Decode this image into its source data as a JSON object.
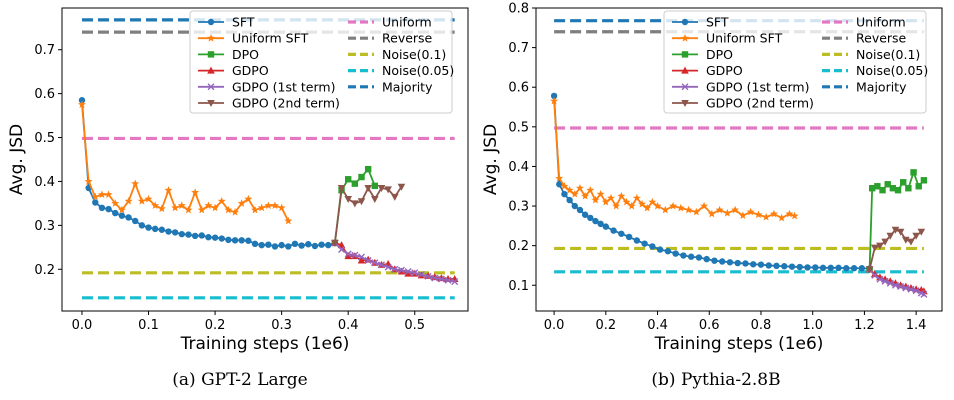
{
  "chart_data": [
    {
      "type": "line",
      "caption": "(a) GPT-2 Large",
      "xlabel": "Training steps (1e6)",
      "ylabel": "Avg. JSD",
      "xlim": [
        -0.03,
        0.58
      ],
      "ylim": [
        0.105,
        0.795
      ],
      "xticks": [
        0.0,
        0.1,
        0.2,
        0.3,
        0.4,
        0.5
      ],
      "xtick_labels": [
        "0.0",
        "0.1",
        "0.2",
        "0.3",
        "0.4",
        "0.5"
      ],
      "yticks": [
        0.2,
        0.3,
        0.4,
        0.5,
        0.6,
        0.7
      ],
      "ytick_labels": [
        "0.2",
        "0.3",
        "0.4",
        "0.5",
        "0.6",
        "0.7"
      ],
      "grid": false,
      "legend_position": "top-right",
      "series": [
        {
          "name": "SFT",
          "color": "#1f77b4",
          "marker": "circle",
          "x": [
            0.0,
            0.01,
            0.02,
            0.03,
            0.04,
            0.05,
            0.06,
            0.07,
            0.08,
            0.09,
            0.1,
            0.11,
            0.12,
            0.13,
            0.14,
            0.15,
            0.16,
            0.17,
            0.18,
            0.19,
            0.2,
            0.21,
            0.22,
            0.23,
            0.24,
            0.25,
            0.26,
            0.27,
            0.28,
            0.29,
            0.3,
            0.31,
            0.32,
            0.33,
            0.34,
            0.35,
            0.36,
            0.37,
            0.38
          ],
          "y": [
            0.585,
            0.385,
            0.352,
            0.34,
            0.337,
            0.328,
            0.322,
            0.318,
            0.31,
            0.3,
            0.295,
            0.292,
            0.29,
            0.286,
            0.284,
            0.28,
            0.279,
            0.276,
            0.277,
            0.273,
            0.272,
            0.27,
            0.267,
            0.266,
            0.266,
            0.265,
            0.258,
            0.255,
            0.256,
            0.252,
            0.255,
            0.252,
            0.258,
            0.254,
            0.257,
            0.253,
            0.256,
            0.255,
            0.26
          ]
        },
        {
          "name": "Uniform SFT",
          "color": "#ff7f0e",
          "marker": "star",
          "x": [
            0.0,
            0.01,
            0.02,
            0.03,
            0.04,
            0.05,
            0.06,
            0.07,
            0.08,
            0.09,
            0.1,
            0.11,
            0.12,
            0.13,
            0.14,
            0.15,
            0.16,
            0.17,
            0.18,
            0.19,
            0.2,
            0.21,
            0.22,
            0.23,
            0.24,
            0.25,
            0.26,
            0.27,
            0.28,
            0.29,
            0.3,
            0.31
          ],
          "y": [
            0.575,
            0.4,
            0.365,
            0.37,
            0.37,
            0.35,
            0.335,
            0.355,
            0.395,
            0.355,
            0.36,
            0.345,
            0.338,
            0.38,
            0.34,
            0.345,
            0.335,
            0.375,
            0.335,
            0.345,
            0.34,
            0.355,
            0.335,
            0.33,
            0.35,
            0.36,
            0.335,
            0.34,
            0.345,
            0.345,
            0.34,
            0.31
          ]
        },
        {
          "name": "DPO",
          "color": "#2ca02c",
          "marker": "square",
          "x": [
            0.38,
            0.39,
            0.4,
            0.41,
            0.42,
            0.43,
            0.44
          ],
          "y": [
            0.26,
            0.38,
            0.405,
            0.395,
            0.41,
            0.428,
            0.39
          ]
        },
        {
          "name": "GDPO",
          "color": "#d62728",
          "marker": "triangle-up",
          "x": [
            0.38,
            0.39,
            0.4,
            0.41,
            0.42,
            0.43,
            0.44,
            0.45,
            0.46,
            0.47,
            0.48,
            0.49,
            0.5,
            0.51,
            0.52,
            0.53,
            0.54,
            0.55,
            0.56
          ],
          "y": [
            0.26,
            0.255,
            0.23,
            0.23,
            0.22,
            0.222,
            0.215,
            0.21,
            0.212,
            0.2,
            0.195,
            0.19,
            0.19,
            0.186,
            0.185,
            0.182,
            0.18,
            0.178,
            0.178
          ]
        },
        {
          "name": "GDPO (1st term)",
          "color": "#9467bd",
          "marker": "x",
          "x": [
            0.38,
            0.39,
            0.4,
            0.41,
            0.42,
            0.43,
            0.44,
            0.45,
            0.46,
            0.47,
            0.48,
            0.49,
            0.5,
            0.51,
            0.52,
            0.53,
            0.54,
            0.55,
            0.56
          ],
          "y": [
            0.26,
            0.245,
            0.235,
            0.232,
            0.228,
            0.22,
            0.215,
            0.21,
            0.205,
            0.2,
            0.198,
            0.195,
            0.192,
            0.188,
            0.184,
            0.18,
            0.178,
            0.175,
            0.172
          ]
        },
        {
          "name": "GDPO (2nd term)",
          "color": "#8c564b",
          "marker": "triangle-down",
          "x": [
            0.38,
            0.39,
            0.4,
            0.41,
            0.42,
            0.43,
            0.44,
            0.45,
            0.46,
            0.47,
            0.48
          ],
          "y": [
            0.26,
            0.385,
            0.36,
            0.35,
            0.355,
            0.385,
            0.36,
            0.385,
            0.382,
            0.365,
            0.388
          ]
        }
      ],
      "baselines": [
        {
          "name": "Uniform",
          "color": "#e377c2",
          "y": 0.498,
          "x0": 0.0,
          "x1": 0.56
        },
        {
          "name": "Reverse",
          "color": "#7f7f7f",
          "y": 0.74,
          "x0": 0.0,
          "x1": 0.56
        },
        {
          "name": "Noise(0.1)",
          "color": "#bcbd22",
          "y": 0.192,
          "x0": 0.0,
          "x1": 0.56
        },
        {
          "name": "Noise(0.05)",
          "color": "#17becf",
          "y": 0.135,
          "x0": 0.0,
          "x1": 0.56
        },
        {
          "name": "Majority",
          "color": "#1f77b4",
          "y": 0.768,
          "x0": 0.0,
          "x1": 0.56
        }
      ]
    },
    {
      "type": "line",
      "caption": "(b) Pythia-2.8B",
      "xlabel": "Training steps (1e6)",
      "ylabel": "Avg. JSD",
      "xlim": [
        -0.07,
        1.5
      ],
      "ylim": [
        0.035,
        0.8
      ],
      "xticks": [
        0.0,
        0.2,
        0.4,
        0.6,
        0.8,
        1.0,
        1.2,
        1.4
      ],
      "xtick_labels": [
        "0.0",
        "0.2",
        "0.4",
        "0.6",
        "0.8",
        "1.0",
        "1.2",
        "1.4"
      ],
      "yticks": [
        0.1,
        0.2,
        0.3,
        0.4,
        0.5,
        0.6,
        0.7,
        0.8
      ],
      "ytick_labels": [
        "0.1",
        "0.2",
        "0.3",
        "0.4",
        "0.5",
        "0.6",
        "0.7",
        "0.8"
      ],
      "grid": false,
      "legend_position": "top-right",
      "series": [
        {
          "name": "SFT",
          "color": "#1f77b4",
          "marker": "circle",
          "x": [
            0.0,
            0.02,
            0.04,
            0.06,
            0.08,
            0.1,
            0.12,
            0.14,
            0.16,
            0.18,
            0.2,
            0.23,
            0.26,
            0.29,
            0.32,
            0.35,
            0.38,
            0.41,
            0.44,
            0.47,
            0.5,
            0.53,
            0.56,
            0.59,
            0.62,
            0.65,
            0.68,
            0.71,
            0.74,
            0.77,
            0.8,
            0.83,
            0.86,
            0.89,
            0.92,
            0.95,
            0.98,
            1.01,
            1.04,
            1.07,
            1.1,
            1.13,
            1.16,
            1.19,
            1.22
          ],
          "y": [
            0.578,
            0.355,
            0.33,
            0.315,
            0.3,
            0.29,
            0.278,
            0.27,
            0.262,
            0.255,
            0.248,
            0.238,
            0.23,
            0.222,
            0.213,
            0.205,
            0.198,
            0.19,
            0.186,
            0.18,
            0.175,
            0.172,
            0.17,
            0.166,
            0.162,
            0.16,
            0.158,
            0.156,
            0.155,
            0.153,
            0.152,
            0.15,
            0.149,
            0.148,
            0.147,
            0.146,
            0.145,
            0.145,
            0.144,
            0.144,
            0.144,
            0.143,
            0.143,
            0.143,
            0.142
          ]
        },
        {
          "name": "Uniform SFT",
          "color": "#ff7f0e",
          "marker": "star",
          "x": [
            0.0,
            0.02,
            0.04,
            0.06,
            0.08,
            0.1,
            0.12,
            0.14,
            0.16,
            0.18,
            0.2,
            0.22,
            0.24,
            0.26,
            0.28,
            0.3,
            0.32,
            0.34,
            0.36,
            0.38,
            0.4,
            0.43,
            0.46,
            0.49,
            0.52,
            0.55,
            0.58,
            0.61,
            0.64,
            0.67,
            0.7,
            0.73,
            0.76,
            0.79,
            0.82,
            0.85,
            0.88,
            0.91,
            0.93
          ],
          "y": [
            0.565,
            0.37,
            0.35,
            0.34,
            0.33,
            0.345,
            0.325,
            0.34,
            0.315,
            0.33,
            0.31,
            0.32,
            0.3,
            0.325,
            0.31,
            0.3,
            0.32,
            0.305,
            0.295,
            0.31,
            0.3,
            0.29,
            0.3,
            0.295,
            0.29,
            0.285,
            0.3,
            0.28,
            0.29,
            0.282,
            0.29,
            0.276,
            0.285,
            0.278,
            0.272,
            0.28,
            0.27,
            0.28,
            0.275
          ]
        },
        {
          "name": "DPO",
          "color": "#2ca02c",
          "marker": "square",
          "x": [
            1.22,
            1.23,
            1.25,
            1.27,
            1.29,
            1.31,
            1.33,
            1.35,
            1.37,
            1.39,
            1.41,
            1.43
          ],
          "y": [
            0.14,
            0.345,
            0.35,
            0.34,
            0.355,
            0.345,
            0.34,
            0.36,
            0.345,
            0.385,
            0.35,
            0.365
          ]
        },
        {
          "name": "GDPO",
          "color": "#d62728",
          "marker": "triangle-up",
          "x": [
            1.22,
            1.24,
            1.26,
            1.28,
            1.3,
            1.32,
            1.34,
            1.36,
            1.38,
            1.4,
            1.42,
            1.43
          ],
          "y": [
            0.14,
            0.128,
            0.12,
            0.115,
            0.11,
            0.105,
            0.1,
            0.097,
            0.093,
            0.09,
            0.088,
            0.085
          ]
        },
        {
          "name": "GDPO (1st term)",
          "color": "#9467bd",
          "marker": "x",
          "x": [
            1.22,
            1.24,
            1.26,
            1.28,
            1.3,
            1.32,
            1.34,
            1.36,
            1.38,
            1.4,
            1.42,
            1.43
          ],
          "y": [
            0.14,
            0.125,
            0.115,
            0.11,
            0.105,
            0.1,
            0.097,
            0.093,
            0.09,
            0.086,
            0.08,
            0.077
          ]
        },
        {
          "name": "GDPO (2nd term)",
          "color": "#8c564b",
          "marker": "triangle-down",
          "x": [
            1.22,
            1.24,
            1.26,
            1.28,
            1.3,
            1.32,
            1.34,
            1.36,
            1.38,
            1.4,
            1.42
          ],
          "y": [
            0.14,
            0.195,
            0.2,
            0.21,
            0.225,
            0.24,
            0.235,
            0.215,
            0.21,
            0.225,
            0.235
          ]
        }
      ],
      "baselines": [
        {
          "name": "Uniform",
          "color": "#e377c2",
          "y": 0.497,
          "x0": 0.0,
          "x1": 1.43
        },
        {
          "name": "Reverse",
          "color": "#7f7f7f",
          "y": 0.74,
          "x0": 0.0,
          "x1": 1.43
        },
        {
          "name": "Noise(0.1)",
          "color": "#bcbd22",
          "y": 0.193,
          "x0": 0.0,
          "x1": 1.43
        },
        {
          "name": "Noise(0.05)",
          "color": "#17becf",
          "y": 0.134,
          "x0": 0.0,
          "x1": 1.43
        },
        {
          "name": "Majority",
          "color": "#1f77b4",
          "y": 0.768,
          "x0": 0.0,
          "x1": 1.43
        }
      ]
    }
  ]
}
